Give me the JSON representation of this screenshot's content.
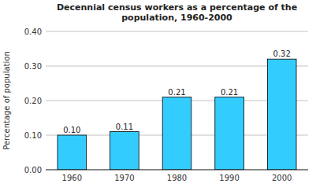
{
  "chart_data": {
    "type": "bar",
    "title": "Decennial census workers as a percentage of the\npopulation, 1960-2000",
    "ylabel": "Percentage of population",
    "categories": [
      "1960",
      "1970",
      "1980",
      "1990",
      "2000"
    ],
    "values": [
      0.1,
      0.11,
      0.21,
      0.21,
      0.32
    ],
    "value_labels": [
      "0.10",
      "0.11",
      "0.21",
      "0.21",
      "0.32"
    ],
    "color": "#33CCFF",
    "ylim": [
      0.0,
      0.4
    ],
    "yticks": [
      {
        "value": 0.0,
        "label": "0.00"
      },
      {
        "value": 0.1,
        "label": "0.10"
      },
      {
        "value": 0.2,
        "label": "0.20"
      },
      {
        "value": 0.3,
        "label": "0.30"
      },
      {
        "value": 0.4,
        "label": "0.40"
      }
    ],
    "grid": true,
    "data_labels": true
  }
}
